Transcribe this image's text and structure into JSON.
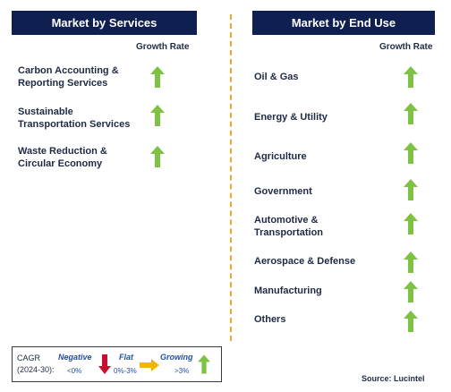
{
  "left_panel": {
    "title": "Market by Services",
    "growth_label": "Growth Rate",
    "items": [
      {
        "label_line1": "Carbon Accounting &",
        "label_line2": "Reporting Services",
        "trend": "growing"
      },
      {
        "label_line1": "Sustainable",
        "label_line2": "Transportation Services",
        "trend": "growing"
      },
      {
        "label_line1": "Waste Reduction &",
        "label_line2": "Circular Economy",
        "trend": "growing"
      }
    ]
  },
  "right_panel": {
    "title": "Market by End Use",
    "growth_label": "Growth Rate",
    "items": [
      {
        "label_line1": "Oil & Gas",
        "label_line2": "",
        "trend": "growing"
      },
      {
        "label_line1": "Energy & Utility",
        "label_line2": "",
        "trend": "growing"
      },
      {
        "label_line1": "Agriculture",
        "label_line2": "",
        "trend": "growing"
      },
      {
        "label_line1": "Government",
        "label_line2": "",
        "trend": "growing"
      },
      {
        "label_line1": "Automotive &",
        "label_line2": "Transportation",
        "trend": "growing"
      },
      {
        "label_line1": "Aerospace & Defense",
        "label_line2": "",
        "trend": "growing"
      },
      {
        "label_line1": "Manufacturing",
        "label_line2": "",
        "trend": "growing"
      },
      {
        "label_line1": "Others",
        "label_line2": "",
        "trend": "growing"
      }
    ]
  },
  "legend": {
    "cagr_line1": "CAGR",
    "cagr_line2": "(2024-30):",
    "negative_label": "Negative",
    "negative_range": "<0%",
    "flat_label": "Flat",
    "flat_range": "0%-3%",
    "growing_label": "Growing",
    "growing_range": ">3%"
  },
  "source": "Source: Lucintel",
  "colors": {
    "header_bg": "#0f1f4f",
    "up_arrow": "#7dc242",
    "down_arrow": "#c8102e",
    "flat_arrow": "#f5b400",
    "divider": "#f5a623"
  }
}
